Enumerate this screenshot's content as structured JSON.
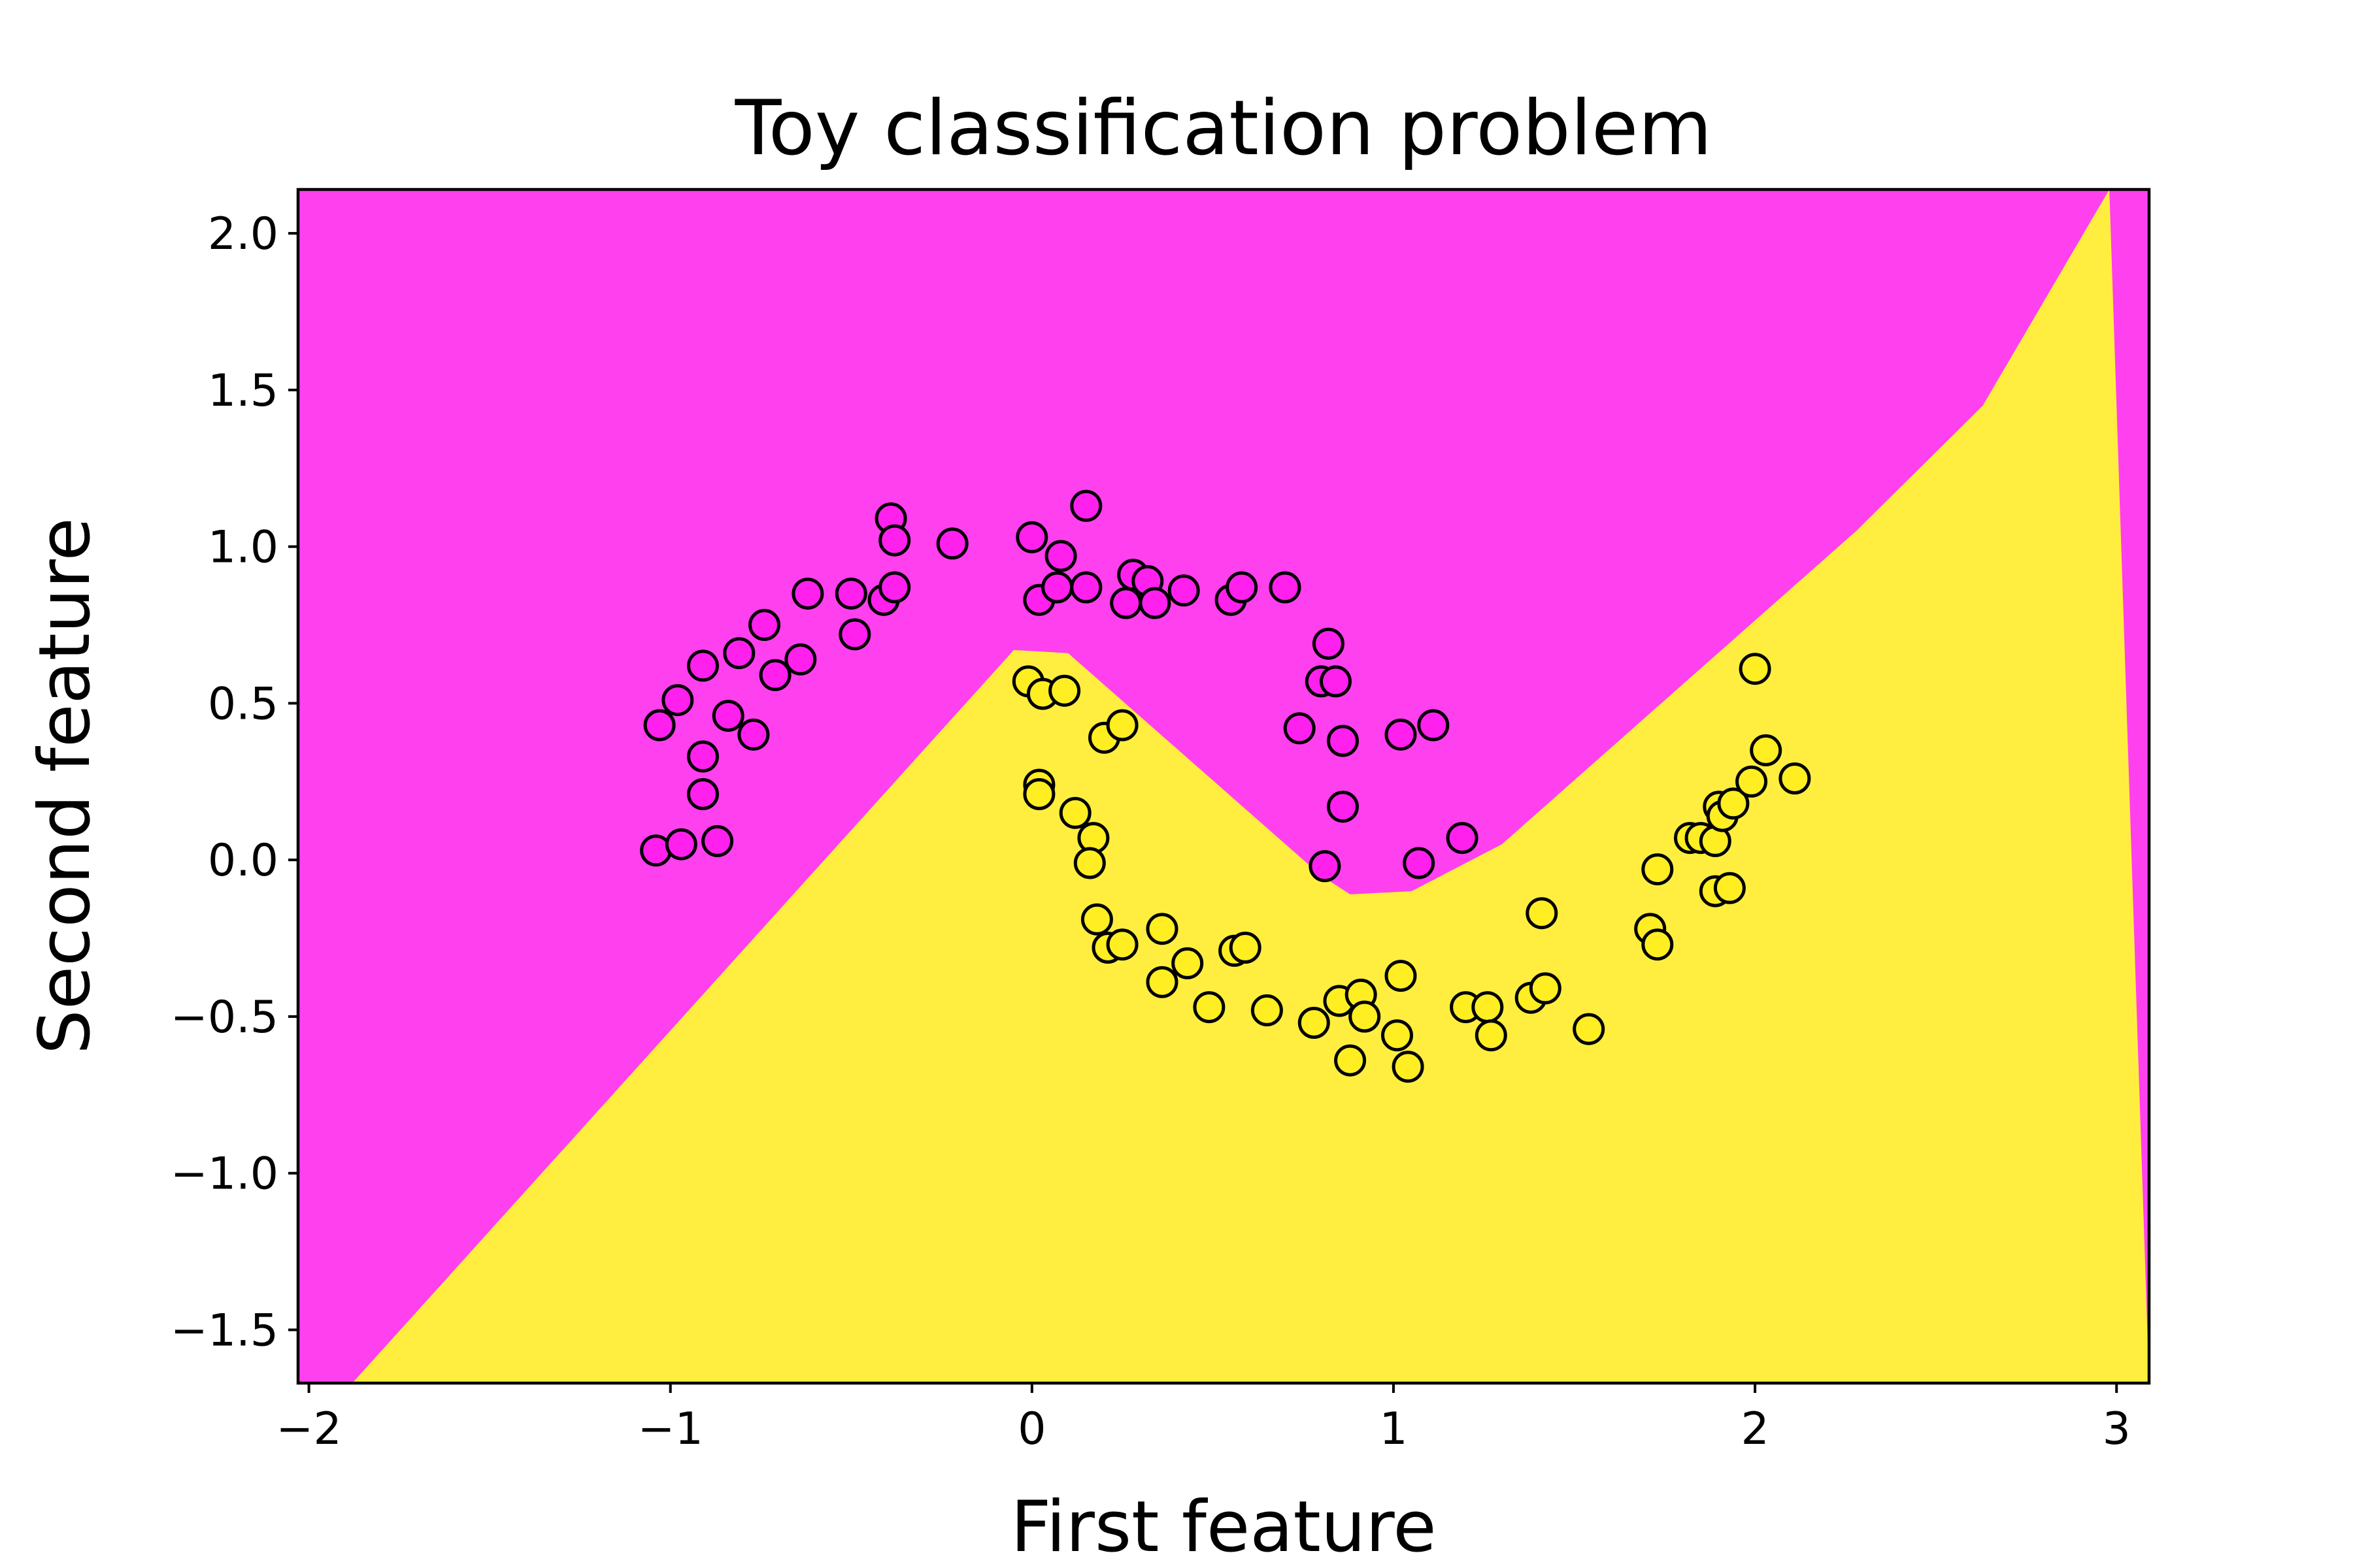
{
  "chart_data": {
    "type": "scatter",
    "title": "Toy classification problem",
    "xlabel": "First feature",
    "ylabel": "Second feature",
    "xlim": [
      -2.03,
      3.09
    ],
    "ylim": [
      -1.67,
      2.14
    ],
    "xticks": [
      -2,
      -1,
      0,
      1,
      2,
      3
    ],
    "xtick_labels": [
      "−2",
      "−1",
      "0",
      "1",
      "2",
      "3"
    ],
    "yticks": [
      -1.5,
      -1.0,
      -0.5,
      0.0,
      0.5,
      1.0,
      1.5,
      2.0
    ],
    "ytick_labels": [
      "−1.5",
      "−1.0",
      "−0.5",
      "0.0",
      "0.5",
      "1.0",
      "1.5",
      "2.0"
    ],
    "grid": false,
    "legend": "none",
    "background_regions": {
      "class_0_color": "#ff40ee",
      "class_1_color": "#ffee40",
      "decision_boundary": [
        [
          -1.88,
          -1.67
        ],
        [
          -0.05,
          0.67
        ],
        [
          0.1,
          0.66
        ],
        [
          0.8,
          -0.05
        ],
        [
          0.88,
          -0.11
        ],
        [
          1.05,
          -0.1
        ],
        [
          1.3,
          0.05
        ],
        [
          2.28,
          1.05
        ],
        [
          2.63,
          1.45
        ],
        [
          2.98,
          2.14
        ]
      ]
    },
    "series": [
      {
        "color": "#ff20ee",
        "points": [
          [
            -1.03,
            0.43
          ],
          [
            -0.98,
            0.51
          ],
          [
            -0.91,
            0.62
          ],
          [
            -0.91,
            0.33
          ],
          [
            -0.91,
            0.21
          ],
          [
            -0.84,
            0.46
          ],
          [
            -0.81,
            0.66
          ],
          [
            -0.77,
            0.4
          ],
          [
            -0.74,
            0.75
          ],
          [
            -0.71,
            0.59
          ],
          [
            -0.64,
            0.64
          ],
          [
            -0.62,
            0.85
          ],
          [
            -0.5,
            0.85
          ],
          [
            -0.49,
            0.72
          ],
          [
            -0.41,
            0.83
          ],
          [
            -0.39,
            1.09
          ],
          [
            -0.38,
            1.02
          ],
          [
            -0.38,
            0.87
          ],
          [
            -0.22,
            1.01
          ],
          [
            -1.04,
            0.03
          ],
          [
            -0.97,
            0.05
          ],
          [
            -0.87,
            0.06
          ],
          [
            0.0,
            1.03
          ],
          [
            0.02,
            0.83
          ],
          [
            0.07,
            0.87
          ],
          [
            0.08,
            0.97
          ],
          [
            0.15,
            1.13
          ],
          [
            0.15,
            0.87
          ],
          [
            0.26,
            0.82
          ],
          [
            0.28,
            0.91
          ],
          [
            0.32,
            0.89
          ],
          [
            0.34,
            0.82
          ],
          [
            0.42,
            0.86
          ],
          [
            0.55,
            0.83
          ],
          [
            0.58,
            0.87
          ],
          [
            0.7,
            0.87
          ],
          [
            0.74,
            0.42
          ],
          [
            0.8,
            0.57
          ],
          [
            0.82,
            0.69
          ],
          [
            0.84,
            0.57
          ],
          [
            0.86,
            0.38
          ],
          [
            0.86,
            0.17
          ],
          [
            0.81,
            -0.02
          ],
          [
            1.02,
            0.4
          ],
          [
            1.11,
            0.43
          ],
          [
            1.07,
            -0.01
          ],
          [
            1.19,
            0.07
          ]
        ]
      },
      {
        "color": "#ffee22",
        "points": [
          [
            -0.01,
            0.57
          ],
          [
            0.03,
            0.53
          ],
          [
            0.09,
            0.54
          ],
          [
            0.02,
            0.24
          ],
          [
            0.02,
            0.21
          ],
          [
            0.12,
            0.15
          ],
          [
            0.17,
            0.07
          ],
          [
            0.16,
            -0.01
          ],
          [
            0.2,
            0.39
          ],
          [
            0.25,
            0.43
          ],
          [
            0.18,
            -0.19
          ],
          [
            0.21,
            -0.28
          ],
          [
            0.25,
            -0.27
          ],
          [
            0.36,
            -0.22
          ],
          [
            0.36,
            -0.39
          ],
          [
            0.43,
            -0.33
          ],
          [
            0.49,
            -0.47
          ],
          [
            0.56,
            -0.29
          ],
          [
            0.59,
            -0.28
          ],
          [
            0.65,
            -0.48
          ],
          [
            0.78,
            -0.52
          ],
          [
            0.85,
            -0.45
          ],
          [
            0.88,
            -0.64
          ],
          [
            0.91,
            -0.43
          ],
          [
            0.92,
            -0.5
          ],
          [
            1.01,
            -0.56
          ],
          [
            1.02,
            -0.37
          ],
          [
            1.04,
            -0.66
          ],
          [
            1.2,
            -0.47
          ],
          [
            1.26,
            -0.47
          ],
          [
            1.27,
            -0.56
          ],
          [
            1.38,
            -0.44
          ],
          [
            1.42,
            -0.41
          ],
          [
            1.41,
            -0.17
          ],
          [
            1.54,
            -0.54
          ],
          [
            1.71,
            -0.22
          ],
          [
            1.73,
            -0.03
          ],
          [
            1.73,
            -0.27
          ],
          [
            1.82,
            0.07
          ],
          [
            1.85,
            0.07
          ],
          [
            1.89,
            0.06
          ],
          [
            1.9,
            0.17
          ],
          [
            1.91,
            0.14
          ],
          [
            1.94,
            0.18
          ],
          [
            1.89,
            -0.1
          ],
          [
            1.93,
            -0.09
          ],
          [
            1.99,
            0.25
          ],
          [
            2.0,
            0.61
          ],
          [
            2.03,
            0.35
          ],
          [
            2.11,
            0.26
          ]
        ]
      }
    ]
  }
}
